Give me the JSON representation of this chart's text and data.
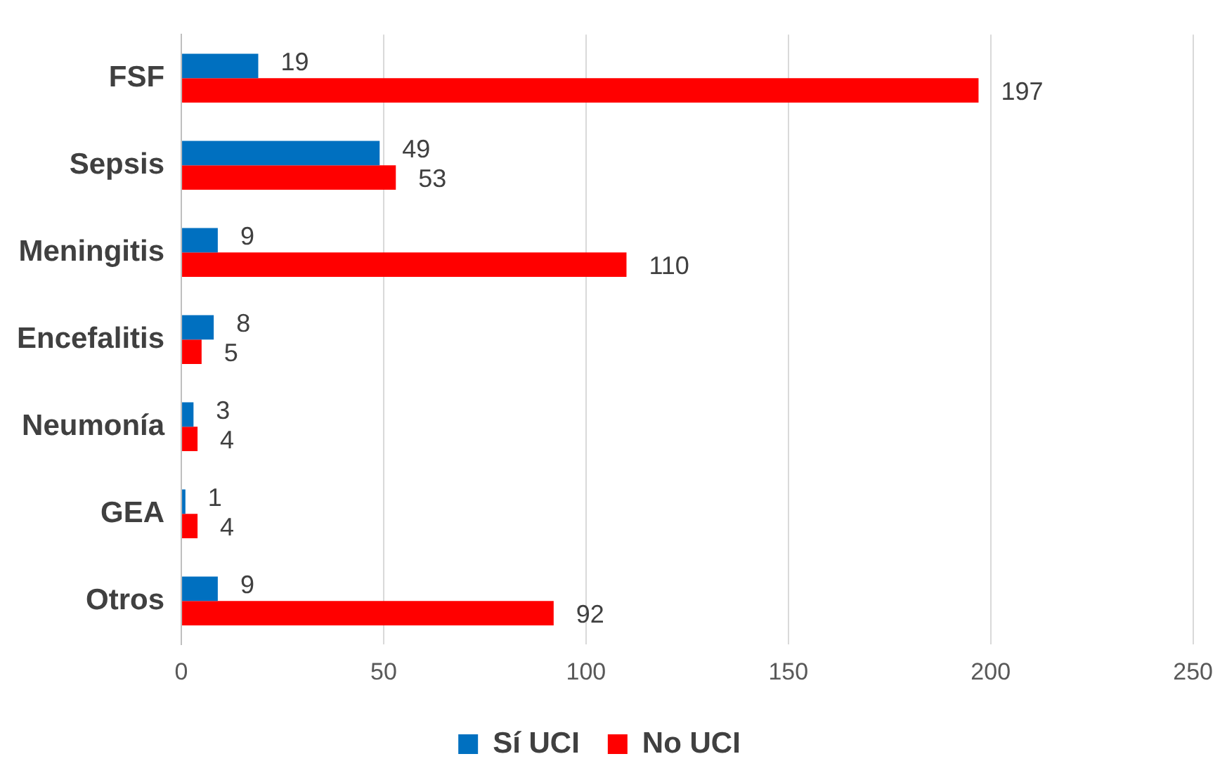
{
  "chart_data": {
    "type": "bar",
    "orientation": "horizontal",
    "categories": [
      "FSF",
      "Sepsis",
      "Meningitis",
      "Encefalitis",
      "Neumonía",
      "GEA",
      "Otros"
    ],
    "series": [
      {
        "name": "Sí UCI",
        "color": "#0070c0",
        "values": [
          19,
          49,
          9,
          8,
          3,
          1,
          9
        ]
      },
      {
        "name": "No UCI",
        "color": "#ff0000",
        "values": [
          197,
          53,
          110,
          5,
          4,
          4,
          92
        ]
      }
    ],
    "xlim": [
      0,
      250
    ],
    "xticks": [
      0,
      50,
      100,
      150,
      200,
      250
    ],
    "grid": "x",
    "legend": "bottom",
    "data_labels": true
  }
}
